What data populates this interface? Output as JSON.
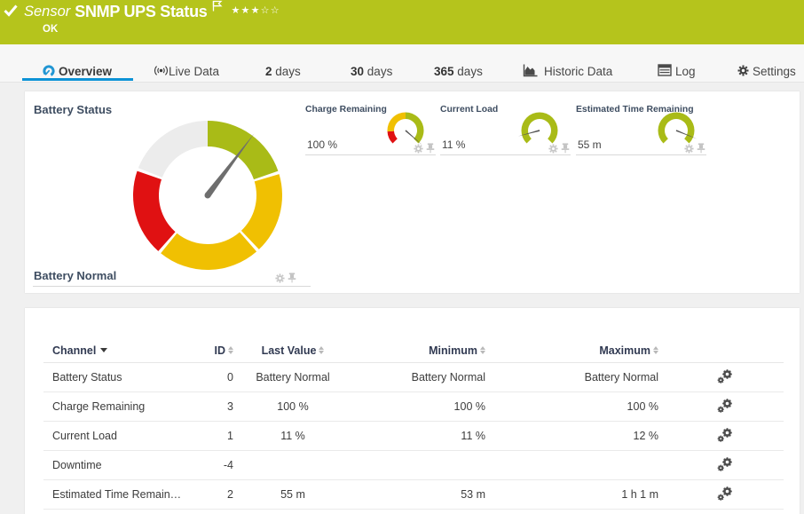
{
  "header": {
    "kind_label": "Sensor",
    "title": "SNMP UPS Status",
    "status_text": "OK",
    "rating": {
      "filled": 3,
      "total": 5
    },
    "bar_color": "#b5c41c"
  },
  "tabs": {
    "overview": {
      "label": "Overview",
      "icon": "gauge-icon",
      "active": true
    },
    "live_data": {
      "label": "Live Data",
      "icon": "broadcast-icon"
    },
    "days2": {
      "number": "2",
      "label": "days"
    },
    "days30": {
      "number": "30",
      "label": "days"
    },
    "days365": {
      "number": "365",
      "label": "days"
    },
    "historic": {
      "label": "Historic Data",
      "icon": "area-chart-icon"
    },
    "log": {
      "label": "Log",
      "icon": "log-icon"
    },
    "settings": {
      "label": "Settings",
      "icon": "gear-icon"
    },
    "active_color": "#0d93d6"
  },
  "gauges": {
    "palette": {
      "green": "#a9bb17",
      "yellow": "#f0c002",
      "red": "#e01112",
      "gray": "#ececec",
      "needle": "#6e6e6e"
    },
    "primary": {
      "title": "Battery Status",
      "status_text": "Battery Normal",
      "outer_radius": 84,
      "inner_radius": 55,
      "needle_deg": 37,
      "needle_len": 87,
      "needle_width": 7,
      "segments": [
        {
          "from": 0,
          "to": 71,
          "color": "#a9bb17"
        },
        {
          "from": 73.5,
          "to": 136.5,
          "color": "#f0c002"
        },
        {
          "from": 139,
          "to": 219,
          "color": "#f0c002"
        },
        {
          "from": 221.5,
          "to": 289,
          "color": "#e01112"
        },
        {
          "from": 291.5,
          "to": 360,
          "color": "#ececec"
        }
      ]
    },
    "small": [
      {
        "title": "Charge Remaining",
        "value": "100 %",
        "outer_radius": 20.5,
        "inner_radius": 13,
        "needle_deg": 131,
        "needle_len": 25,
        "needle_width": 1.7,
        "segments": [
          {
            "from": -135,
            "to": -93,
            "color": "#e01112"
          },
          {
            "from": -93,
            "to": 0,
            "color": "#f0c002"
          },
          {
            "from": 0,
            "to": 135,
            "color": "#a9bb17"
          }
        ]
      },
      {
        "title": "Current Load",
        "value": "11 %",
        "outer_radius": 20.5,
        "inner_radius": 13,
        "needle_deg": -105,
        "needle_len": 25,
        "needle_width": 1.7,
        "segments": [
          {
            "from": -135,
            "to": 135,
            "color": "#a9bb17"
          }
        ]
      },
      {
        "title": "Estimated Time Remaining",
        "value": "55 m",
        "outer_radius": 20.5,
        "inner_radius": 13,
        "needle_deg": 112,
        "needle_len": 25,
        "needle_width": 1.7,
        "segments": [
          {
            "from": -135,
            "to": 135,
            "color": "#a9bb17"
          }
        ]
      }
    ]
  },
  "table": {
    "headers": {
      "channel": "Channel",
      "id": "ID",
      "last_value": "Last Value",
      "minimum": "Minimum",
      "maximum": "Maximum"
    },
    "rows": [
      {
        "channel": "Battery Status",
        "id": "0",
        "last": "Battery Normal",
        "min": "Battery Normal",
        "max": "Battery Normal"
      },
      {
        "channel": "Charge Remaining",
        "id": "3",
        "last": "100 %",
        "min": "100 %",
        "max": "100 %"
      },
      {
        "channel": "Current Load",
        "id": "1",
        "last": "11 %",
        "min": "11 %",
        "max": "12 %"
      },
      {
        "channel": "Downtime",
        "id": "-4",
        "last": "",
        "min": "",
        "max": ""
      },
      {
        "channel": "Estimated Time Remain…",
        "id": "2",
        "last": "55 m",
        "min": "53 m",
        "max": "1 h 1 m"
      }
    ]
  }
}
